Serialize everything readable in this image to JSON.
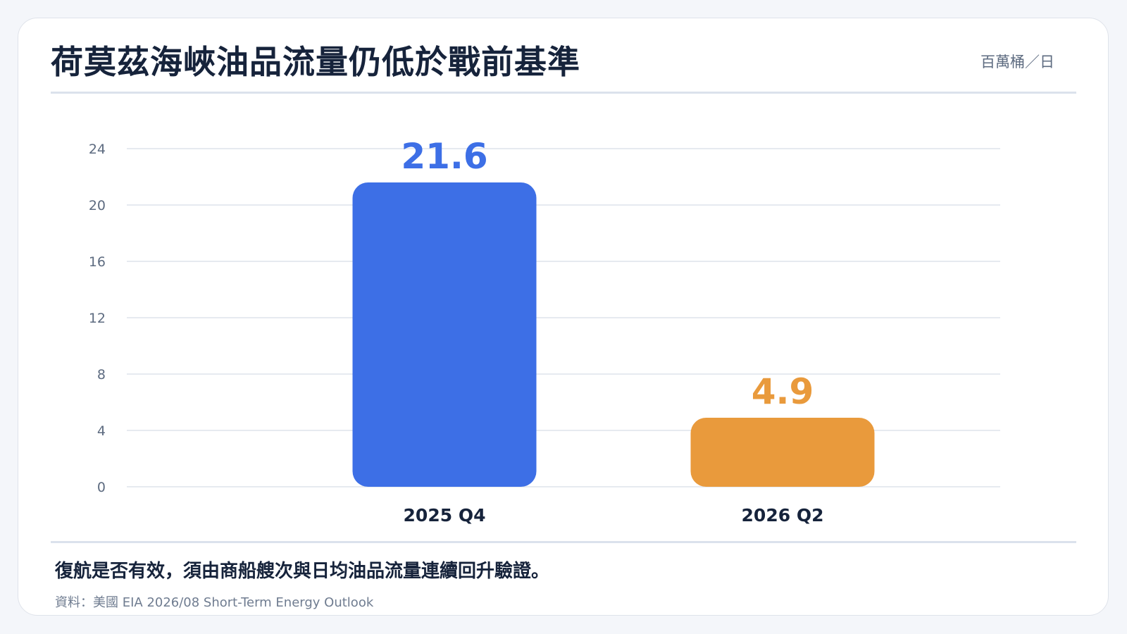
{
  "header": {
    "title": "荷莫茲海峽油品流量仍低於戰前基準",
    "unit": "百萬桶／日"
  },
  "footer": {
    "note": "復航是否有效，須由商船艘次與日均油品流量連續回升驗證。",
    "source": "資料：美國 EIA 2026/08 Short-Term Energy Outlook"
  },
  "chart_data": {
    "type": "bar",
    "categories": [
      "2025 Q4",
      "2026 Q2"
    ],
    "values": [
      21.6,
      4.9
    ],
    "value_labels": [
      "21.6",
      "4.9"
    ],
    "colors": [
      "#3d6fe6",
      "#e99a3c"
    ],
    "title": "荷莫茲海峽油品流量仍低於戰前基準",
    "ylabel": "百萬桶／日",
    "ylim": [
      0,
      24
    ],
    "yticks": [
      0,
      4,
      8,
      12,
      16,
      20,
      24
    ],
    "grid": true,
    "legend": "none"
  }
}
